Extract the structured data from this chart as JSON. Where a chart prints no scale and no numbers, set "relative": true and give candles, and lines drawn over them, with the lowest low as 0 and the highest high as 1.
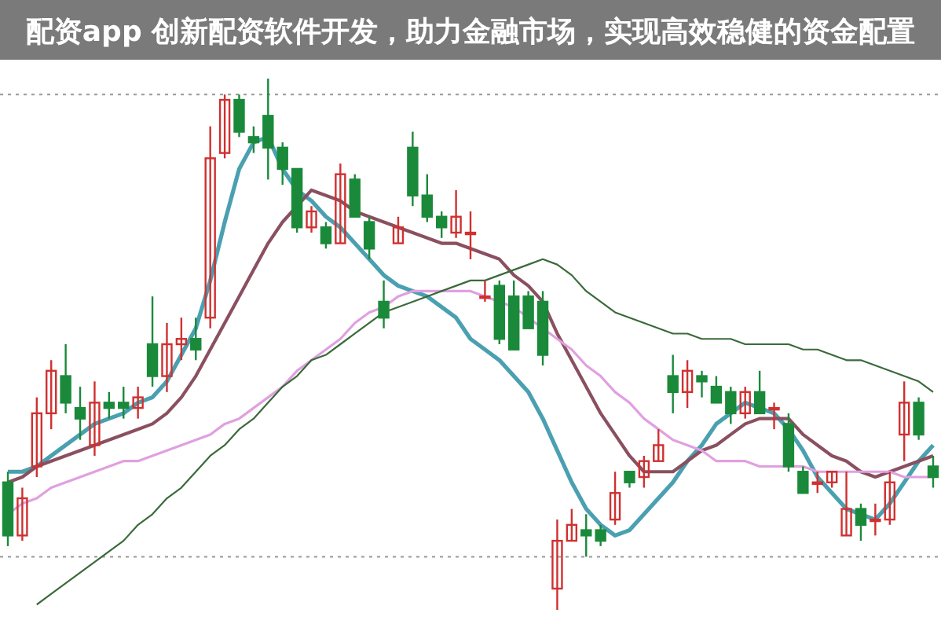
{
  "chart_data": {
    "type": "candlestick",
    "relative": true,
    "title": "配资app 创新配资软件开发，助力金融市场，实现高效稳健的资金配置",
    "categories": [
      null,
      null,
      null,
      null,
      null,
      null,
      null,
      null,
      null,
      null,
      null,
      null,
      null,
      null,
      null,
      null,
      null,
      null,
      null,
      null,
      null,
      null,
      null,
      null,
      null,
      null,
      null,
      null,
      null,
      null,
      null,
      null,
      null,
      null,
      null,
      null,
      null,
      null,
      null,
      null,
      null,
      null,
      null,
      null,
      null,
      null,
      null,
      null,
      null,
      null,
      null,
      null,
      null,
      null,
      null,
      null,
      null,
      null,
      null,
      null,
      null,
      null,
      null,
      null,
      null
    ],
    "ohlc": [
      [
        0.24,
        0.26,
        0.12,
        0.14
      ],
      [
        0.14,
        0.23,
        0.13,
        0.21
      ],
      [
        0.27,
        0.4,
        0.25,
        0.37
      ],
      [
        0.37,
        0.47,
        0.34,
        0.45
      ],
      [
        0.44,
        0.5,
        0.37,
        0.39
      ],
      [
        0.38,
        0.42,
        0.32,
        0.36
      ],
      [
        0.31,
        0.43,
        0.29,
        0.39
      ],
      [
        0.39,
        0.41,
        0.36,
        0.38
      ],
      [
        0.39,
        0.42,
        0.36,
        0.38
      ],
      [
        0.38,
        0.42,
        0.36,
        0.4
      ],
      [
        0.5,
        0.59,
        0.42,
        0.44
      ],
      [
        0.44,
        0.54,
        0.41,
        0.5
      ],
      [
        0.5,
        0.55,
        0.47,
        0.51
      ],
      [
        0.51,
        0.55,
        0.47,
        0.49
      ],
      [
        0.55,
        0.91,
        0.53,
        0.85
      ],
      [
        0.86,
        0.97,
        0.85,
        0.96
      ],
      [
        0.96,
        0.97,
        0.89,
        0.9
      ],
      [
        0.89,
        0.91,
        0.86,
        0.88
      ],
      [
        0.93,
        1,
        0.81,
        0.87
      ],
      [
        0.87,
        0.88,
        0.8,
        0.83
      ],
      [
        0.83,
        0.83,
        0.71,
        0.72
      ],
      [
        0.72,
        0.76,
        0.71,
        0.75
      ],
      [
        0.72,
        0.73,
        0.68,
        0.69
      ],
      [
        0.69,
        0.84,
        0.69,
        0.82
      ],
      [
        0.81,
        0.82,
        0.74,
        0.74
      ],
      [
        0.73,
        0.74,
        0.66,
        0.68
      ],
      [
        0.58,
        0.62,
        0.53,
        0.55
      ],
      [
        0.69,
        0.74,
        0.69,
        0.72
      ],
      [
        0.87,
        0.9,
        0.76,
        0.78
      ],
      [
        0.78,
        0.82,
        0.73,
        0.74
      ],
      [
        0.74,
        0.75,
        0.7,
        0.72
      ],
      [
        0.71,
        0.79,
        0.7,
        0.74
      ],
      [
        0.71,
        0.75,
        0.66,
        0.71
      ],
      [
        0.59,
        0.62,
        0.58,
        0.59
      ],
      [
        0.61,
        0.62,
        0.5,
        0.51
      ],
      [
        0.59,
        0.62,
        0.49,
        0.49
      ],
      [
        0.59,
        0.6,
        0.53,
        0.53
      ],
      [
        0.58,
        0.6,
        0.46,
        0.48
      ],
      [
        0.04,
        0.17,
        0,
        0.13
      ],
      [
        0.13,
        0.19,
        0.13,
        0.16
      ],
      [
        0.15,
        0.18,
        0.1,
        0.14
      ],
      [
        0.15,
        0.16,
        0.12,
        0.13
      ],
      [
        0.17,
        0.26,
        0.16,
        0.22
      ],
      [
        0.26,
        0.26,
        0.23,
        0.24
      ],
      [
        0.25,
        0.29,
        0.23,
        0.28
      ],
      [
        0.28,
        0.34,
        0.28,
        0.31
      ],
      [
        0.44,
        0.48,
        0.37,
        0.41
      ],
      [
        0.41,
        0.47,
        0.38,
        0.45
      ],
      [
        0.44,
        0.45,
        0.4,
        0.43
      ],
      [
        0.42,
        0.44,
        0.39,
        0.39
      ],
      [
        0.41,
        0.42,
        0.35,
        0.37
      ],
      [
        0.37,
        0.42,
        0.36,
        0.41
      ],
      [
        0.41,
        0.45,
        0.37,
        0.37
      ],
      [
        0.38,
        0.39,
        0.34,
        0.38
      ],
      [
        0.35,
        0.37,
        0.26,
        0.27
      ],
      [
        0.26,
        0.27,
        0.22,
        0.22
      ],
      [
        0.24,
        0.26,
        0.22,
        0.24
      ],
      [
        0.24,
        0.26,
        0.23,
        0.26
      ],
      [
        0.14,
        0.26,
        0.14,
        0.19
      ],
      [
        0.19,
        0.2,
        0.13,
        0.16
      ],
      [
        0.17,
        0.2,
        0.14,
        0.17
      ],
      [
        0.17,
        0.26,
        0.16,
        0.24
      ],
      [
        0.33,
        0.43,
        0.28,
        0.39
      ],
      [
        0.39,
        0.4,
        0.32,
        0.33
      ],
      [
        0.27,
        0.29,
        0.23,
        0.25
      ]
    ],
    "series": [
      {
        "type": "line",
        "color": "#4aa0b0",
        "values": [
          0.26,
          0.26,
          0.27,
          0.29,
          0.31,
          0.33,
          0.35,
          0.36,
          0.37,
          0.39,
          0.4,
          0.43,
          0.48,
          0.53,
          0.62,
          0.73,
          0.83,
          0.88,
          0.89,
          0.83,
          0.79,
          0.77,
          0.74,
          0.72,
          0.69,
          0.66,
          0.63,
          0.61,
          0.6,
          0.59,
          0.57,
          0.55,
          0.51,
          0.49,
          0.47,
          0.44,
          0.41,
          0.36,
          0.3,
          0.24,
          0.19,
          0.16,
          0.14,
          0.15,
          0.18,
          0.21,
          0.24,
          0.28,
          0.31,
          0.35,
          0.37,
          0.39,
          0.38,
          0.37,
          0.34,
          0.3,
          0.25,
          0.22,
          0.19,
          0.18,
          0.17,
          0.2,
          0.24,
          0.28,
          0.31
        ]
      },
      {
        "type": "line",
        "color": "#8a5060",
        "values": [
          0.24,
          0.25,
          0.27,
          0.28,
          0.29,
          0.3,
          0.31,
          0.32,
          0.33,
          0.34,
          0.35,
          0.37,
          0.4,
          0.44,
          0.49,
          0.54,
          0.59,
          0.64,
          0.69,
          0.73,
          0.76,
          0.79,
          0.78,
          0.77,
          0.75,
          0.74,
          0.73,
          0.72,
          0.71,
          0.7,
          0.69,
          0.69,
          0.68,
          0.67,
          0.66,
          0.63,
          0.61,
          0.58,
          0.52,
          0.47,
          0.42,
          0.37,
          0.33,
          0.29,
          0.26,
          0.26,
          0.26,
          0.28,
          0.3,
          0.31,
          0.33,
          0.35,
          0.36,
          0.36,
          0.36,
          0.33,
          0.31,
          0.29,
          0.28,
          0.26,
          0.25,
          0.26,
          0.27,
          0.28,
          0.29
        ]
      },
      {
        "type": "line",
        "color": "#e0a0e0",
        "values": [
          0.18,
          0.2,
          0.21,
          0.23,
          0.24,
          0.25,
          0.26,
          0.27,
          0.28,
          0.28,
          0.29,
          0.3,
          0.31,
          0.32,
          0.33,
          0.35,
          0.36,
          0.38,
          0.4,
          0.42,
          0.45,
          0.47,
          0.49,
          0.51,
          0.54,
          0.56,
          0.57,
          0.59,
          0.6,
          0.6,
          0.6,
          0.6,
          0.6,
          0.59,
          0.58,
          0.57,
          0.55,
          0.53,
          0.51,
          0.49,
          0.46,
          0.44,
          0.41,
          0.39,
          0.36,
          0.34,
          0.32,
          0.31,
          0.3,
          0.28,
          0.28,
          0.28,
          0.27,
          0.27,
          0.27,
          0.27,
          0.26,
          0.26,
          0.26,
          0.26,
          0.26,
          0.26,
          0.25,
          0.25,
          0.25
        ]
      },
      {
        "type": "line",
        "color": "#3a6a3a",
        "values": [
          null,
          null,
          0.01,
          0.03,
          0.05,
          0.07,
          0.09,
          0.11,
          0.13,
          0.16,
          0.18,
          0.21,
          0.23,
          0.26,
          0.29,
          0.31,
          0.34,
          0.36,
          0.39,
          0.42,
          0.44,
          0.47,
          0.48,
          0.5,
          0.52,
          0.54,
          0.56,
          0.57,
          0.58,
          0.59,
          0.6,
          0.61,
          0.62,
          0.62,
          0.63,
          0.64,
          0.65,
          0.66,
          0.65,
          0.63,
          0.6,
          0.58,
          0.56,
          0.55,
          0.54,
          0.53,
          0.52,
          0.52,
          0.51,
          0.51,
          0.51,
          0.5,
          0.5,
          0.5,
          0.5,
          0.49,
          0.49,
          0.48,
          0.47,
          0.47,
          0.46,
          0.45,
          0.44,
          0.43,
          0.41
        ]
      }
    ],
    "ref_lines": [
      {
        "axis": "y",
        "value": 0.97,
        "line_style": "dotted",
        "color": "#999999"
      },
      {
        "axis": "y",
        "value": 0.1,
        "line_style": "dotted",
        "color": "#999999"
      }
    ]
  }
}
